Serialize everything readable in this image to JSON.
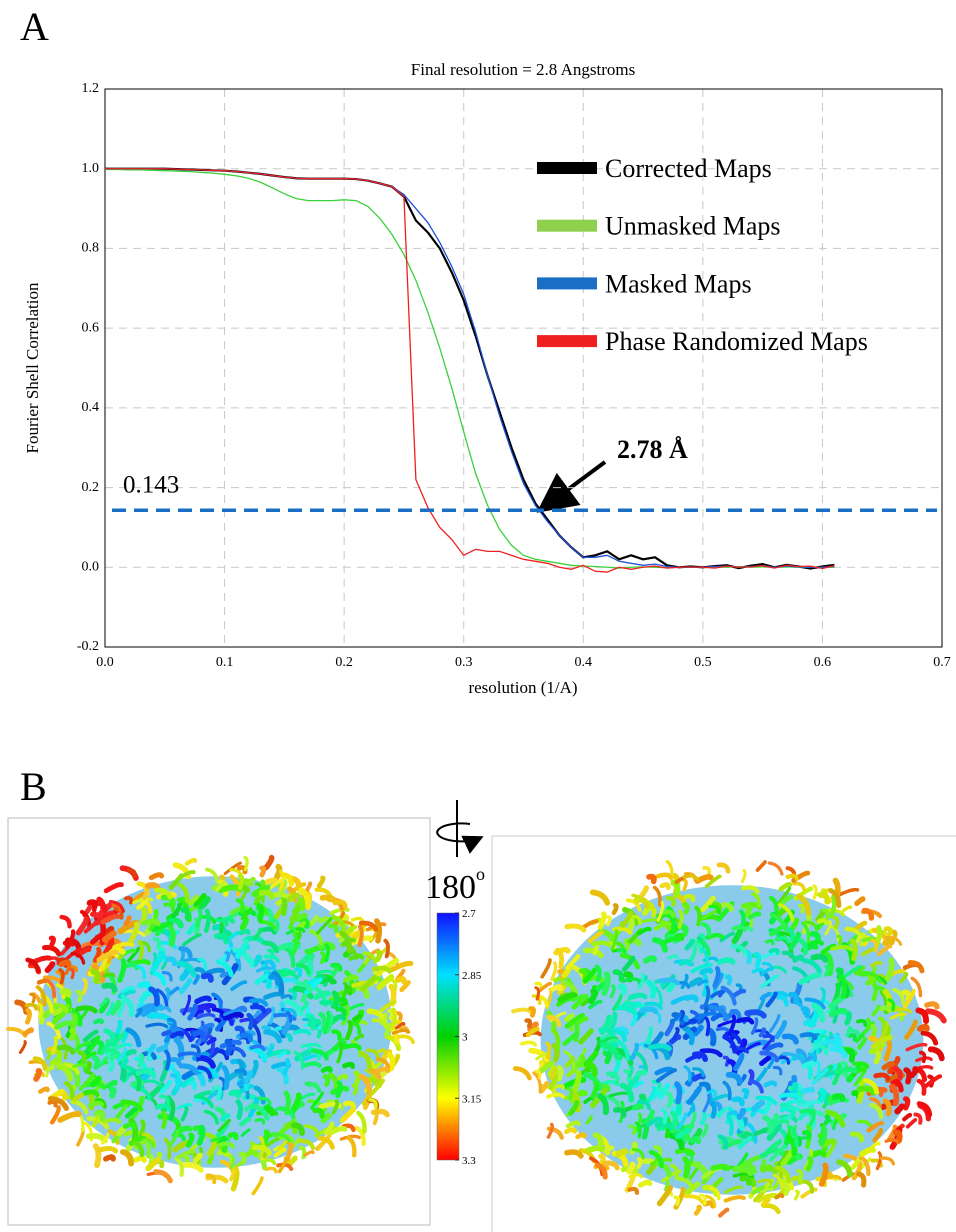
{
  "panels": [
    "A",
    "B"
  ],
  "chart_data": {
    "type": "line",
    "title": "Final resolution =   2.8 Angstroms",
    "xlabel": "resolution (1/A)",
    "ylabel": "Fourier Shell Correlation",
    "x": [
      0,
      0.01,
      0.02,
      0.03,
      0.04,
      0.05,
      0.06,
      0.07,
      0.08,
      0.09,
      0.1,
      0.11,
      0.12,
      0.13,
      0.14,
      0.15,
      0.16,
      0.17,
      0.18,
      0.19,
      0.2,
      0.21,
      0.22,
      0.23,
      0.24,
      0.25,
      0.26,
      0.27,
      0.28,
      0.29,
      0.3,
      0.31,
      0.32,
      0.33,
      0.34,
      0.35,
      0.36,
      0.37,
      0.38,
      0.39,
      0.4,
      0.41,
      0.42,
      0.43,
      0.44,
      0.45,
      0.46,
      0.47,
      0.48,
      0.49,
      0.5,
      0.51,
      0.52,
      0.53,
      0.54,
      0.55,
      0.56,
      0.57,
      0.58,
      0.59,
      0.6,
      0.61
    ],
    "series": [
      {
        "name": "Corrected Maps",
        "color": "#000000",
        "values": [
          1,
          1,
          1,
          1,
          1,
          1,
          0.999,
          0.998,
          0.997,
          0.996,
          0.995,
          0.993,
          0.99,
          0.987,
          0.983,
          0.979,
          0.976,
          0.975,
          0.975,
          0.975,
          0.975,
          0.974,
          0.97,
          0.963,
          0.955,
          0.93,
          0.87,
          0.84,
          0.8,
          0.74,
          0.67,
          0.58,
          0.48,
          0.39,
          0.3,
          0.22,
          0.16,
          0.12,
          0.08,
          0.05,
          0.025,
          0.03,
          0.04,
          0.02,
          0.03,
          0.02,
          0.025,
          0.005,
          0,
          0.002,
          0,
          0.003,
          0.005,
          -0.002,
          0.004,
          0.008,
          0,
          0.006,
          0.002,
          -0.003,
          0.002,
          0.006
        ]
      },
      {
        "name": "Unmasked Maps",
        "color": "#3ad13a",
        "values": [
          0.998,
          0.998,
          0.997,
          0.997,
          0.996,
          0.995,
          0.994,
          0.993,
          0.991,
          0.989,
          0.986,
          0.982,
          0.976,
          0.966,
          0.952,
          0.937,
          0.925,
          0.92,
          0.92,
          0.92,
          0.922,
          0.92,
          0.905,
          0.875,
          0.835,
          0.785,
          0.72,
          0.64,
          0.55,
          0.45,
          0.34,
          0.235,
          0.155,
          0.095,
          0.055,
          0.03,
          0.02,
          0.015,
          0.01,
          0.005,
          0.003,
          0.002,
          0,
          -0.002,
          0,
          0.001,
          0,
          -0.001,
          0,
          0,
          0,
          0.001,
          0,
          0.002,
          0,
          0.001,
          0,
          0.001,
          0,
          0,
          0,
          0
        ]
      },
      {
        "name": "Masked Maps",
        "color": "#2050d8",
        "values": [
          1,
          1,
          1,
          1,
          1,
          1,
          0.999,
          0.998,
          0.997,
          0.996,
          0.995,
          0.993,
          0.99,
          0.987,
          0.983,
          0.979,
          0.976,
          0.975,
          0.975,
          0.975,
          0.975,
          0.974,
          0.97,
          0.963,
          0.955,
          0.935,
          0.9,
          0.865,
          0.815,
          0.755,
          0.685,
          0.59,
          0.48,
          0.38,
          0.29,
          0.21,
          0.155,
          0.115,
          0.08,
          0.05,
          0.025,
          0.025,
          0.03,
          0.015,
          0.01,
          0.005,
          0.008,
          0.002,
          0,
          0,
          0,
          0.002,
          0.003,
          0,
          0.002,
          0.004,
          0,
          0.003,
          0.001,
          0,
          0,
          0.002
        ]
      },
      {
        "name": "Phase Randomized Maps",
        "color": "#ee2020",
        "values": [
          1,
          1,
          1,
          1,
          1,
          1,
          0.999,
          0.998,
          0.997,
          0.996,
          0.995,
          0.993,
          0.99,
          0.987,
          0.983,
          0.979,
          0.976,
          0.975,
          0.975,
          0.975,
          0.975,
          0.974,
          0.97,
          0.963,
          0.955,
          0.93,
          0.22,
          0.15,
          0.1,
          0.07,
          0.03,
          0.045,
          0.04,
          0.04,
          0.03,
          0.02,
          0.015,
          0.01,
          0,
          -0.005,
          0.005,
          -0.01,
          -0.012,
          0,
          -0.005,
          0,
          0.003,
          -0.002,
          0,
          0.001,
          0,
          -0.002,
          0.003,
          0,
          0.001,
          0.004,
          -0.002,
          0.005,
          0.002,
          0.003,
          -0.003,
          0.004
        ]
      }
    ],
    "legend_swatch_colors": [
      "#000000",
      "#8fd14f",
      "#1a6fc4",
      "#ee2020"
    ],
    "xlim": [
      0,
      0.7
    ],
    "ylim": [
      -0.2,
      1.2
    ],
    "xticks": [
      {
        "value": 0,
        "label": "0.0"
      },
      0.1,
      0.2,
      0.3,
      0.4,
      0.5,
      0.6,
      0.7
    ],
    "yticks": [
      -0.2,
      {
        "value": 0,
        "label": "0.0"
      },
      0.2,
      0.4,
      0.6,
      0.8,
      {
        "value": 1,
        "label": "1.0"
      },
      1.2
    ],
    "grid": true,
    "legend": "upper right",
    "threshold": 0.143,
    "threshold_color": "#1a6fc4",
    "annotation": "2.78 Å"
  },
  "rotation": {
    "angle": "180",
    "unit": "o"
  },
  "colorbar": {
    "lim": [
      2.7,
      3.3
    ],
    "ticks": [
      2.7,
      2.85,
      3,
      3.15,
      3.3
    ]
  }
}
